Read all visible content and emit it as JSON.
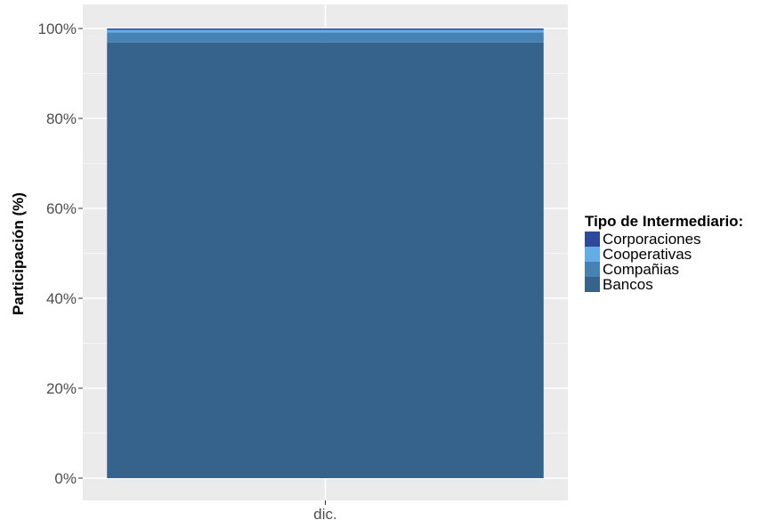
{
  "chart_data": {
    "type": "bar",
    "stacked": true,
    "percent": true,
    "title": "",
    "xlabel": "",
    "ylabel": "Participación (%)",
    "categories": [
      "dic."
    ],
    "ylim": [
      0,
      100
    ],
    "y_ticks": [
      "0%",
      "20%",
      "40%",
      "60%",
      "80%",
      "100%"
    ],
    "y_tick_values": [
      0,
      20,
      40,
      60,
      80,
      100
    ],
    "series": [
      {
        "name": "Bancos",
        "values": [
          96.9
        ],
        "color": "#35638b"
      },
      {
        "name": "Compañias",
        "values": [
          2.2
        ],
        "color": "#4682b4"
      },
      {
        "name": "Cooperativas",
        "values": [
          0.6
        ],
        "color": "#63aee8"
      },
      {
        "name": "Corporaciones",
        "values": [
          0.3
        ],
        "color": "#2d4a9a"
      }
    ],
    "legend": {
      "title": "Tipo de Intermediario:",
      "position": "right",
      "items": [
        "Corporaciones",
        "Cooperativas",
        "Compañias",
        "Bancos"
      ]
    },
    "grid": true,
    "panel_background": "#ebebeb"
  }
}
